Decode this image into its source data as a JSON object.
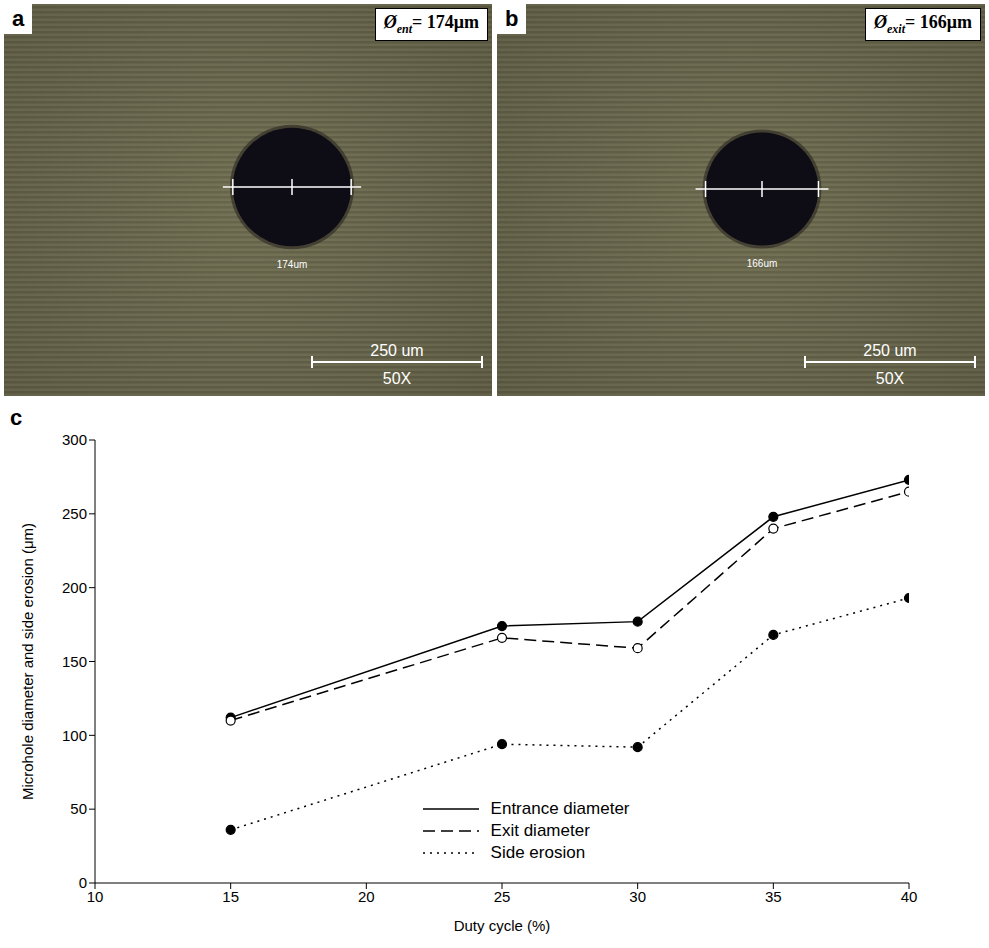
{
  "panels": [
    {
      "letter": "a",
      "label_symbol": "Ø",
      "label_subscript": "ent",
      "label_value": "= 174μm",
      "measure_text": "174um",
      "scale_bar": "250 um",
      "magnification": "50X"
    },
    {
      "letter": "b",
      "label_symbol": "Ø",
      "label_subscript": "exit",
      "label_value": "= 166μm",
      "measure_text": "166um",
      "scale_bar": "250 um",
      "magnification": "50X"
    }
  ],
  "chart_letter": "c",
  "chart_data": {
    "type": "line",
    "x_label": "Duty cycle (%)",
    "y_label": "Microhole diameter and side erosion (μm)",
    "x": [
      15,
      25,
      30,
      35,
      40
    ],
    "xlim": [
      10,
      40
    ],
    "xticks": [
      10,
      15,
      20,
      25,
      30,
      35,
      40
    ],
    "ylim": [
      0,
      300
    ],
    "yticks": [
      0,
      50,
      100,
      150,
      200,
      250,
      300
    ],
    "legend": "lower right",
    "series": [
      {
        "name": "Entrance diameter",
        "color": "#000000",
        "marker": "circle",
        "line_style": "solid",
        "values": [
          112,
          174,
          177,
          248,
          273
        ]
      },
      {
        "name": "Exit diameter",
        "color": "#000000",
        "marker": "circle_open",
        "line_style": "dashed",
        "values": [
          110,
          166,
          159,
          240,
          265
        ]
      },
      {
        "name": "Side erosion",
        "color": "#000000",
        "marker": "circle",
        "line_style": "dotted",
        "values": [
          36,
          94,
          92,
          168,
          193
        ]
      }
    ]
  }
}
